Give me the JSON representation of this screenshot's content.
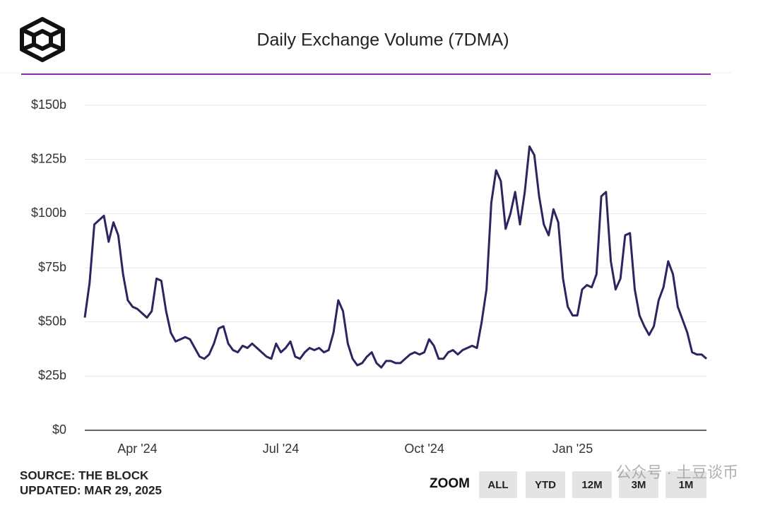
{
  "chart_data": {
    "type": "line",
    "title": "Daily Exchange Volume (7DMA)",
    "source": "SOURCE: THE BLOCK",
    "updated": "UPDATED: MAR 29, 2025",
    "zoom_label": "ZOOM",
    "zoom_buttons": [
      "ALL",
      "YTD",
      "12M",
      "3M",
      "1M"
    ],
    "watermark": "公众号 · 土豆谈币",
    "grid": true,
    "ylim": [
      0,
      150
    ],
    "yticks": [
      {
        "value": 0,
        "label": "$0"
      },
      {
        "value": 25,
        "label": "$25b"
      },
      {
        "value": 50,
        "label": "$50b"
      },
      {
        "value": 75,
        "label": "$75b"
      },
      {
        "value": 100,
        "label": "$100b"
      },
      {
        "value": 125,
        "label": "$125b"
      },
      {
        "value": 150,
        "label": "$150b"
      }
    ],
    "categories": [
      null,
      null,
      null,
      null,
      null,
      null,
      null,
      null,
      null,
      null,
      null,
      "Apr '24",
      null,
      null,
      null,
      null,
      null,
      null,
      null,
      null,
      null,
      null,
      null,
      null,
      null,
      null,
      null,
      null,
      null,
      null,
      null,
      null,
      null,
      null,
      null,
      null,
      null,
      null,
      null,
      null,
      null,
      "Jul '24",
      null,
      null,
      null,
      null,
      null,
      null,
      null,
      null,
      null,
      null,
      null,
      null,
      null,
      null,
      null,
      null,
      null,
      null,
      null,
      null,
      null,
      null,
      null,
      null,
      null,
      null,
      null,
      null,
      null,
      "Oct '24",
      null,
      null,
      null,
      null,
      null,
      null,
      null,
      null,
      null,
      null,
      null,
      null,
      null,
      null,
      null,
      null,
      null,
      null,
      null,
      null,
      null,
      null,
      null,
      null,
      null,
      null,
      null,
      null,
      null,
      null,
      "Jan '25",
      null,
      null,
      null,
      null,
      null,
      null,
      null,
      null,
      null,
      null,
      null,
      null,
      null,
      null,
      null,
      null,
      null,
      null,
      null,
      null,
      null,
      null,
      null,
      null,
      null,
      null,
      null,
      null
    ],
    "series": [
      {
        "name": "Daily Exchange Volume",
        "color": "#2b2560",
        "values": [
          52,
          68,
          95,
          97,
          99,
          87,
          96,
          90,
          72,
          60,
          57,
          56,
          54,
          52,
          55,
          70,
          69,
          55,
          45,
          41,
          42,
          43,
          42,
          38,
          34,
          33,
          35,
          40,
          47,
          48,
          40,
          37,
          36,
          39,
          38,
          40,
          38,
          36,
          34,
          33,
          40,
          36,
          38,
          41,
          34,
          33,
          36,
          38,
          37,
          38,
          36,
          37,
          45,
          60,
          55,
          40,
          33,
          30,
          31,
          34,
          36,
          31,
          29,
          32,
          32,
          31,
          31,
          33,
          35,
          36,
          35,
          36,
          42,
          39,
          33,
          33,
          36,
          37,
          35,
          37,
          38,
          39,
          38,
          50,
          65,
          105,
          120,
          115,
          93,
          100,
          110,
          95,
          110,
          131,
          127,
          108,
          95,
          90,
          102,
          96,
          70,
          57,
          53,
          53,
          65,
          67,
          66,
          72,
          108,
          110,
          78,
          65,
          70,
          90,
          91,
          65,
          53,
          48,
          44,
          48,
          60,
          66,
          78,
          72,
          57,
          51,
          45,
          36,
          35,
          35,
          33
        ]
      }
    ]
  }
}
